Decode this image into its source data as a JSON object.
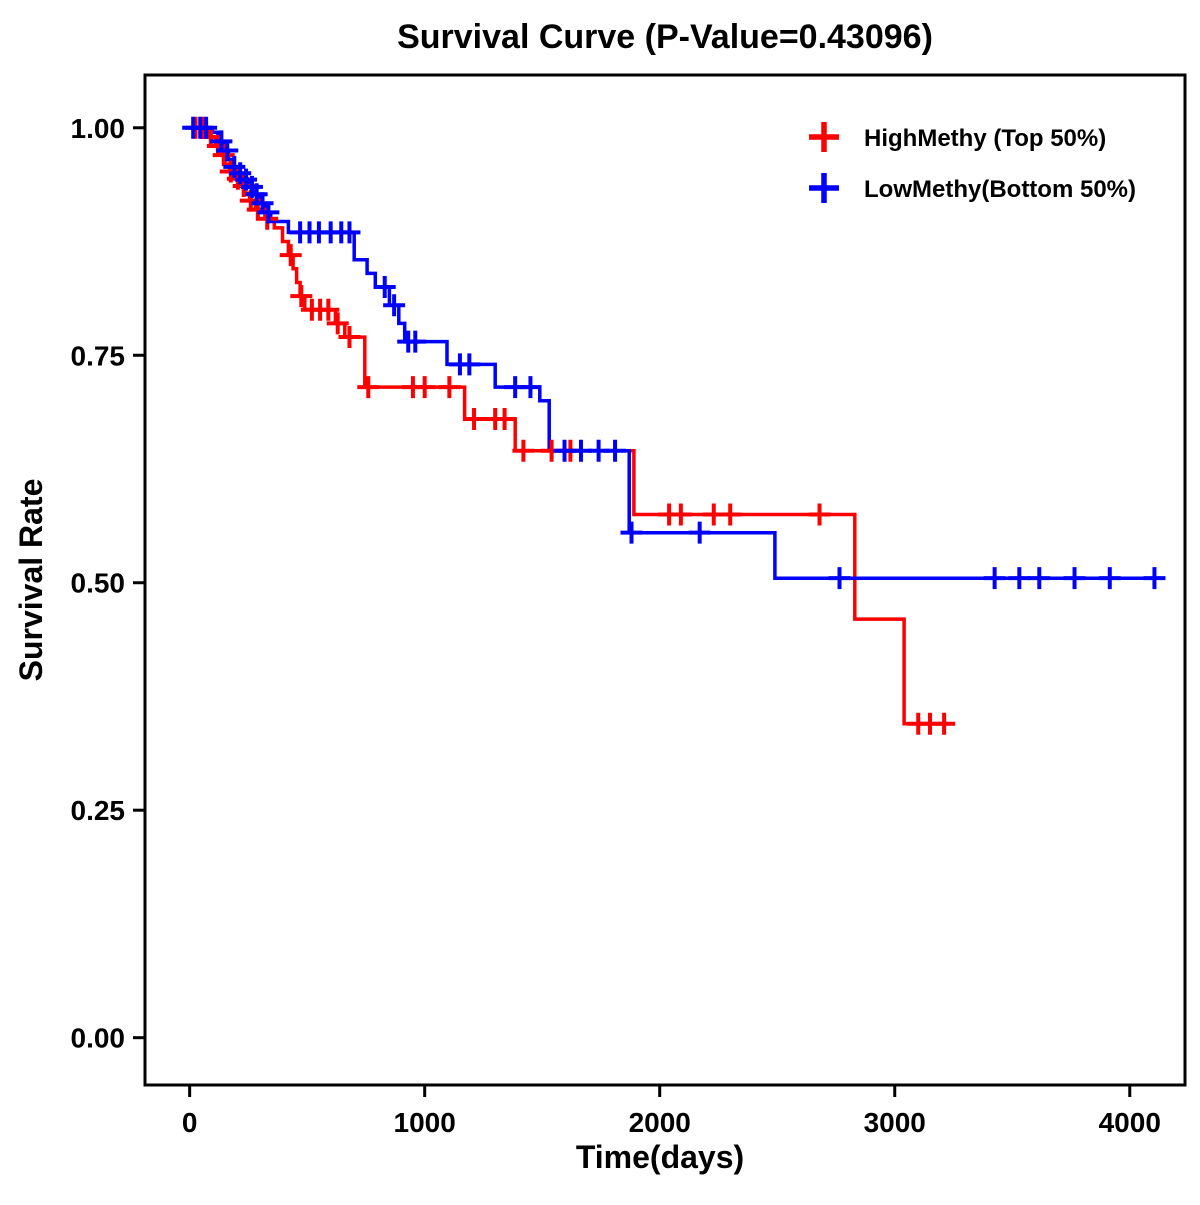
{
  "chart_data": {
    "type": "line",
    "subtype": "kaplan-meier-step",
    "title": "Survival Curve (P-Value=0.43096)",
    "p_value": "0.43096",
    "xlabel": "Time(days)",
    "ylabel": "Survival Rate",
    "xlim": [
      -190,
      4235
    ],
    "ylim": [
      -0.052,
      1.058
    ],
    "x_ticks": [
      "0",
      "1000",
      "2000",
      "3000",
      "4000"
    ],
    "y_ticks": [
      "0.00",
      "0.25",
      "0.50",
      "0.75",
      "1.00"
    ],
    "grid": false,
    "legend_position": "top-right",
    "legend_marker": "plus-icon",
    "series": [
      {
        "id": "highmethy",
        "name": "HighMethy (Top 50%)",
        "color": "#FF0000",
        "end_time": 3240,
        "steps": [
          [
            0,
            1.0
          ],
          [
            85,
            0.99
          ],
          [
            110,
            0.98
          ],
          [
            130,
            0.97
          ],
          [
            150,
            0.96
          ],
          [
            170,
            0.952
          ],
          [
            195,
            0.944
          ],
          [
            215,
            0.936
          ],
          [
            235,
            0.928
          ],
          [
            255,
            0.92
          ],
          [
            280,
            0.91
          ],
          [
            320,
            0.9
          ],
          [
            360,
            0.89
          ],
          [
            395,
            0.875
          ],
          [
            420,
            0.86
          ],
          [
            440,
            0.845
          ],
          [
            455,
            0.83
          ],
          [
            470,
            0.815
          ],
          [
            490,
            0.8
          ],
          [
            620,
            0.785
          ],
          [
            660,
            0.77
          ],
          [
            745,
            0.715
          ],
          [
            1170,
            0.68
          ],
          [
            1385,
            0.645
          ],
          [
            1890,
            0.575
          ],
          [
            2830,
            0.46
          ],
          [
            3040,
            0.345
          ]
        ],
        "censor_times": [
          25,
          55,
          90,
          120,
          145,
          175,
          205,
          230,
          260,
          290,
          330,
          430,
          475,
          520,
          555,
          590,
          630,
          680,
          760,
          950,
          1000,
          1105,
          1210,
          1300,
          1340,
          1420,
          1540,
          1620,
          2040,
          2090,
          2230,
          2300,
          2680,
          3100,
          3150,
          3210
        ]
      },
      {
        "id": "lowmethy",
        "name": "LowMethy(Bottom 50%)",
        "color": "#0000FF",
        "end_time": 4150,
        "steps": [
          [
            0,
            1.0
          ],
          [
            95,
            0.995
          ],
          [
            120,
            0.985
          ],
          [
            145,
            0.975
          ],
          [
            165,
            0.965
          ],
          [
            185,
            0.957
          ],
          [
            210,
            0.95
          ],
          [
            230,
            0.943
          ],
          [
            250,
            0.935
          ],
          [
            270,
            0.927
          ],
          [
            295,
            0.917
          ],
          [
            320,
            0.907
          ],
          [
            345,
            0.897
          ],
          [
            420,
            0.885
          ],
          [
            700,
            0.855
          ],
          [
            755,
            0.84
          ],
          [
            790,
            0.825
          ],
          [
            850,
            0.805
          ],
          [
            890,
            0.785
          ],
          [
            915,
            0.765
          ],
          [
            1095,
            0.74
          ],
          [
            1300,
            0.715
          ],
          [
            1490,
            0.7
          ],
          [
            1530,
            0.645
          ],
          [
            1870,
            0.555
          ],
          [
            2490,
            0.505
          ]
        ],
        "censor_times": [
          15,
          45,
          70,
          135,
          160,
          190,
          215,
          240,
          265,
          285,
          310,
          335,
          470,
          510,
          550,
          600,
          645,
          680,
          830,
          870,
          930,
          960,
          1150,
          1190,
          1385,
          1450,
          1595,
          1665,
          1740,
          1810,
          1880,
          2170,
          2765,
          3425,
          3530,
          3615,
          3765,
          3915,
          4105
        ]
      }
    ]
  }
}
